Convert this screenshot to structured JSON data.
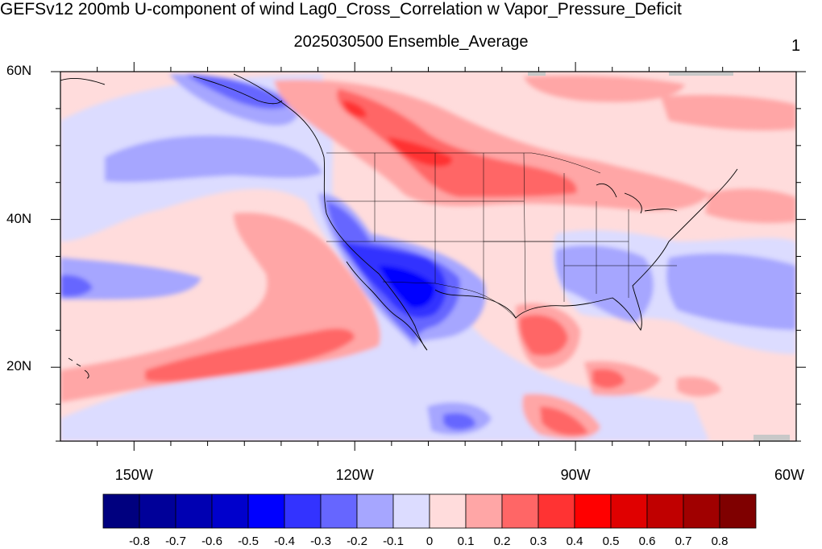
{
  "title": "GEFSv12 200mb U-component of wind Lag0_Cross_Correlation w Vapor_Pressure_Deficit",
  "subtitle": "2025030500 Ensemble_Average",
  "panel_number": "1",
  "map": {
    "lon_range": [
      -160,
      -60
    ],
    "lat_range": [
      10,
      60
    ],
    "lat_ticks": [
      {
        "value": 60,
        "label": "60N"
      },
      {
        "value": 40,
        "label": "40N"
      },
      {
        "value": 20,
        "label": "20N"
      }
    ],
    "lon_ticks": [
      {
        "value": -150,
        "label": "150W"
      },
      {
        "value": -120,
        "label": "120W"
      },
      {
        "value": -90,
        "label": "90W"
      },
      {
        "value": -60,
        "label": "60W"
      }
    ]
  },
  "colorbar": {
    "labels": [
      "-0.8",
      "-0.7",
      "-0.6",
      "-0.5",
      "-0.4",
      "-0.3",
      "-0.2",
      "-0.1",
      "0",
      "0.1",
      "0.2",
      "0.3",
      "0.4",
      "0.5",
      "0.6",
      "0.7",
      "0.8"
    ],
    "colors": [
      "#00007f",
      "#000099",
      "#0000b2",
      "#0000cc",
      "#0000ff",
      "#3333ff",
      "#6666ff",
      "#a6a6ff",
      "#dcdcff",
      "#ffdcdc",
      "#ffa6a6",
      "#ff6666",
      "#ff3333",
      "#ff0000",
      "#e00000",
      "#c00000",
      "#a00000",
      "#7f0000"
    ]
  }
}
